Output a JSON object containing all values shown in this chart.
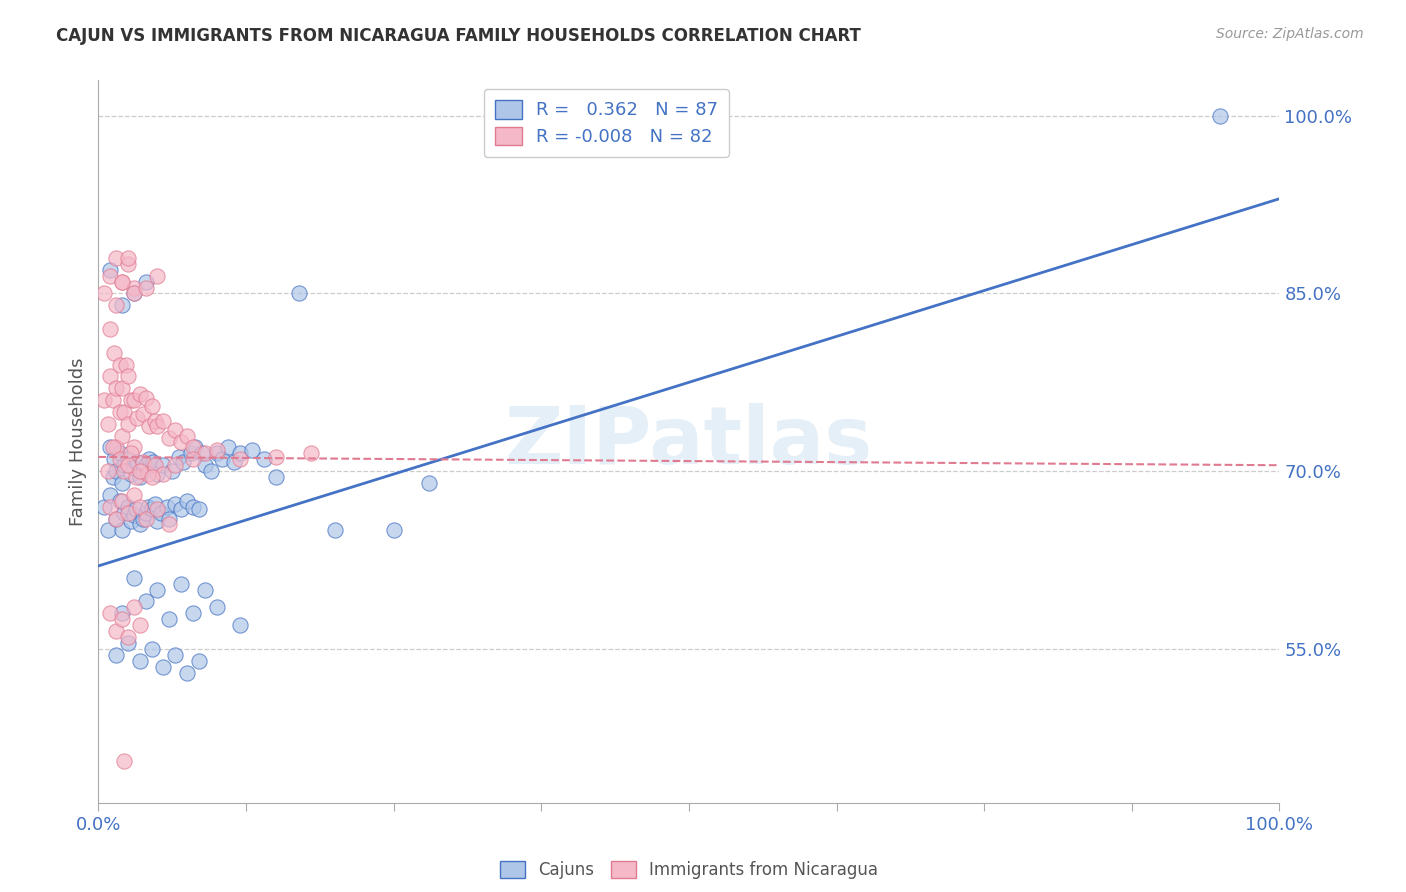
{
  "title": "CAJUN VS IMMIGRANTS FROM NICARAGUA FAMILY HOUSEHOLDS CORRELATION CHART",
  "source": "Source: ZipAtlas.com",
  "ylabel": "Family Households",
  "ytick_labels": [
    "100.0%",
    "85.0%",
    "70.0%",
    "55.0%"
  ],
  "ytick_values": [
    1.0,
    0.85,
    0.7,
    0.55
  ],
  "legend_cajun_R": "0.362",
  "legend_cajun_N": "87",
  "legend_nicaragua_R": "-0.008",
  "legend_nicaragua_N": "82",
  "cajun_color": "#aec6e8",
  "nicaragua_color": "#f5b8c8",
  "cajun_line_color": "#4472c4",
  "nicaragua_line_color": "#e07a90",
  "watermark": "ZIPatlas",
  "background_color": "#ffffff",
  "grid_color": "#cccccc",
  "axis_label_color": "#4472c4",
  "cajun_scatter_x": [
    0.005,
    0.008,
    0.01,
    0.01,
    0.012,
    0.013,
    0.015,
    0.015,
    0.018,
    0.018,
    0.02,
    0.02,
    0.022,
    0.022,
    0.025,
    0.025,
    0.028,
    0.028,
    0.03,
    0.03,
    0.032,
    0.033,
    0.035,
    0.035,
    0.038,
    0.038,
    0.04,
    0.04,
    0.042,
    0.043,
    0.045,
    0.046,
    0.048,
    0.05,
    0.05,
    0.053,
    0.055,
    0.058,
    0.06,
    0.062,
    0.065,
    0.068,
    0.07,
    0.072,
    0.075,
    0.078,
    0.08,
    0.082,
    0.085,
    0.088,
    0.09,
    0.095,
    0.1,
    0.105,
    0.11,
    0.115,
    0.12,
    0.13,
    0.14,
    0.15,
    0.17,
    0.2,
    0.25,
    0.28,
    0.02,
    0.03,
    0.04,
    0.05,
    0.06,
    0.07,
    0.08,
    0.09,
    0.1,
    0.12,
    0.015,
    0.025,
    0.035,
    0.045,
    0.055,
    0.065,
    0.075,
    0.085,
    0.01,
    0.02,
    0.03,
    0.04,
    0.95
  ],
  "cajun_scatter_y": [
    0.67,
    0.65,
    0.68,
    0.72,
    0.695,
    0.71,
    0.66,
    0.7,
    0.675,
    0.715,
    0.65,
    0.69,
    0.665,
    0.705,
    0.67,
    0.71,
    0.658,
    0.698,
    0.663,
    0.703,
    0.668,
    0.708,
    0.655,
    0.695,
    0.66,
    0.7,
    0.665,
    0.705,
    0.67,
    0.71,
    0.668,
    0.708,
    0.672,
    0.658,
    0.698,
    0.665,
    0.705,
    0.67,
    0.66,
    0.7,
    0.672,
    0.712,
    0.668,
    0.708,
    0.675,
    0.715,
    0.67,
    0.72,
    0.668,
    0.715,
    0.705,
    0.7,
    0.715,
    0.71,
    0.72,
    0.708,
    0.715,
    0.718,
    0.71,
    0.695,
    0.85,
    0.65,
    0.65,
    0.69,
    0.58,
    0.61,
    0.59,
    0.6,
    0.575,
    0.605,
    0.58,
    0.6,
    0.585,
    0.57,
    0.545,
    0.555,
    0.54,
    0.55,
    0.535,
    0.545,
    0.53,
    0.54,
    0.87,
    0.84,
    0.85,
    0.86,
    1.0
  ],
  "nicaragua_scatter_x": [
    0.005,
    0.008,
    0.01,
    0.012,
    0.013,
    0.015,
    0.015,
    0.018,
    0.018,
    0.02,
    0.02,
    0.022,
    0.023,
    0.025,
    0.025,
    0.028,
    0.03,
    0.03,
    0.033,
    0.035,
    0.038,
    0.04,
    0.043,
    0.045,
    0.048,
    0.05,
    0.055,
    0.06,
    0.065,
    0.07,
    0.075,
    0.08,
    0.09,
    0.1,
    0.12,
    0.15,
    0.18,
    0.01,
    0.015,
    0.02,
    0.025,
    0.03,
    0.035,
    0.04,
    0.05,
    0.06,
    0.005,
    0.01,
    0.015,
    0.02,
    0.025,
    0.03,
    0.01,
    0.015,
    0.02,
    0.025,
    0.03,
    0.035,
    0.01,
    0.015,
    0.02,
    0.025,
    0.03,
    0.04,
    0.05,
    0.008,
    0.012,
    0.018,
    0.022,
    0.028,
    0.032,
    0.038,
    0.042,
    0.048,
    0.055,
    0.025,
    0.035,
    0.045,
    0.065,
    0.08,
    0.022
  ],
  "nicaragua_scatter_y": [
    0.76,
    0.74,
    0.78,
    0.76,
    0.8,
    0.72,
    0.77,
    0.75,
    0.79,
    0.73,
    0.77,
    0.75,
    0.79,
    0.74,
    0.78,
    0.76,
    0.72,
    0.76,
    0.745,
    0.765,
    0.748,
    0.762,
    0.738,
    0.755,
    0.742,
    0.738,
    0.742,
    0.728,
    0.735,
    0.725,
    0.73,
    0.72,
    0.715,
    0.718,
    0.71,
    0.712,
    0.715,
    0.67,
    0.66,
    0.675,
    0.665,
    0.68,
    0.67,
    0.66,
    0.668,
    0.655,
    0.85,
    0.865,
    0.88,
    0.86,
    0.875,
    0.855,
    0.58,
    0.565,
    0.575,
    0.56,
    0.585,
    0.57,
    0.82,
    0.84,
    0.86,
    0.88,
    0.85,
    0.855,
    0.865,
    0.7,
    0.72,
    0.71,
    0.7,
    0.715,
    0.695,
    0.708,
    0.698,
    0.705,
    0.698,
    0.705,
    0.7,
    0.695,
    0.705,
    0.71,
    0.455
  ],
  "cajun_line_x": [
    0.0,
    1.0
  ],
  "cajun_line_y": [
    0.62,
    0.93
  ],
  "nicaragua_line_x": [
    0.0,
    1.0
  ],
  "nicaragua_line_y": [
    0.712,
    0.705
  ],
  "xmin": 0.0,
  "xmax": 1.0,
  "ymin": 0.42,
  "ymax": 1.03
}
